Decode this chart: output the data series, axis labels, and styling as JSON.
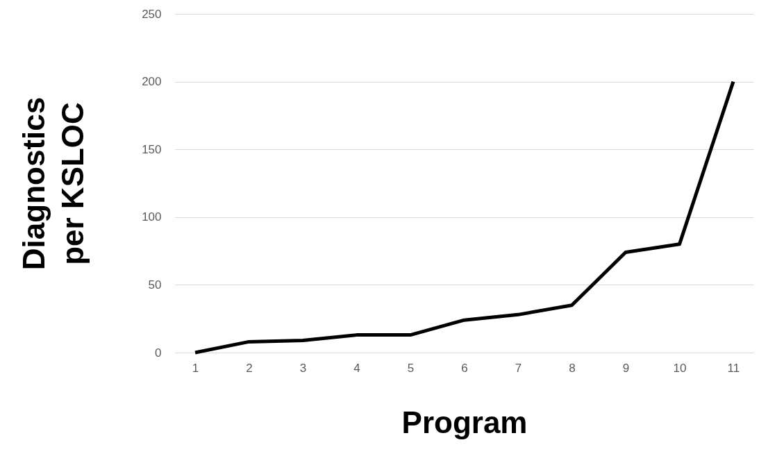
{
  "chart_data": {
    "type": "line",
    "xlabel": "Program",
    "ylabel": "Diagnostics per KSLOC",
    "categories": [
      "1",
      "2",
      "3",
      "4",
      "5",
      "6",
      "7",
      "8",
      "9",
      "10",
      "11"
    ],
    "series": [
      {
        "color": "#000000",
        "values": [
          0,
          8,
          9,
          13,
          13,
          24,
          28,
          35,
          74,
          80,
          200
        ]
      }
    ],
    "ylim": [
      0,
      250
    ],
    "yticks": [
      0,
      50,
      100,
      150,
      200,
      250
    ],
    "grid": "y",
    "marker": "none",
    "line_style": "solid"
  }
}
